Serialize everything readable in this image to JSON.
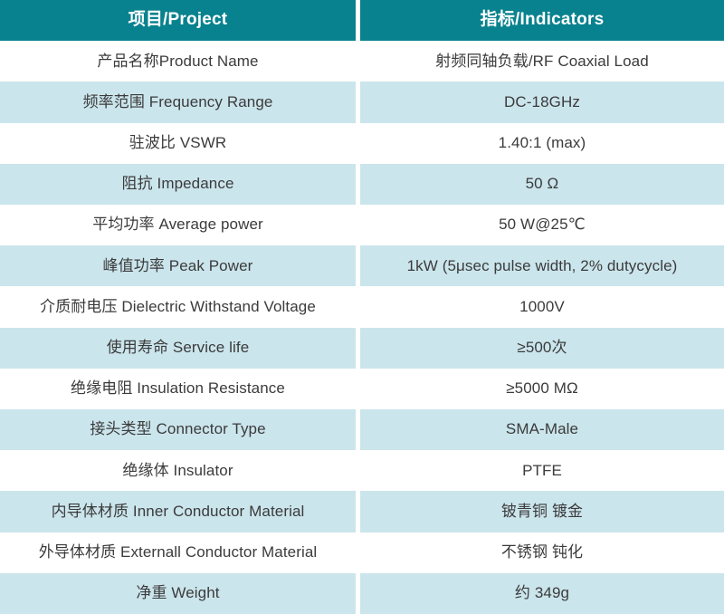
{
  "table": {
    "header": {
      "project": "项目/Project",
      "indicators": "指标/Indicators"
    },
    "rows": [
      {
        "project": "产品名称Product Name",
        "indicator": "射频同轴负载/RF Coaxial Load"
      },
      {
        "project": "频率范围 Frequency Range",
        "indicator": "DC-18GHz"
      },
      {
        "project": "驻波比 VSWR",
        "indicator": "1.40:1 (max)"
      },
      {
        "project": "阻抗 Impedance",
        "indicator": "50 Ω"
      },
      {
        "project": "平均功率 Average power",
        "indicator": "50 W@25℃"
      },
      {
        "project": "峰值功率 Peak Power",
        "indicator": "1kW (5μsec pulse width, 2% dutycycle)"
      },
      {
        "project": "介质耐电压 Dielectric Withstand Voltage",
        "indicator": "1000V"
      },
      {
        "project": "使用寿命 Service life",
        "indicator": "≥500次"
      },
      {
        "project": "绝缘电阻 Insulation Resistance",
        "indicator": "≥5000 MΩ"
      },
      {
        "project": "接头类型 Connector Type",
        "indicator": "SMA-Male"
      },
      {
        "project": "绝缘体 Insulator",
        "indicator": "PTFE"
      },
      {
        "project": "内导体材质 Inner Conductor Material",
        "indicator": "铍青铜 镀金"
      },
      {
        "project": "外导体材质 Externall Conductor Material",
        "indicator": "不锈钢 钝化"
      },
      {
        "project": "净重 Weight",
        "indicator": "约 349g"
      }
    ],
    "colors": {
      "header_bg": "#08828e",
      "header_text": "#ffffff",
      "row_bg": "#ffffff",
      "row_alt_bg": "#cbe5ec",
      "body_text": "#3b3b3b",
      "divider": "#ffffff"
    }
  }
}
